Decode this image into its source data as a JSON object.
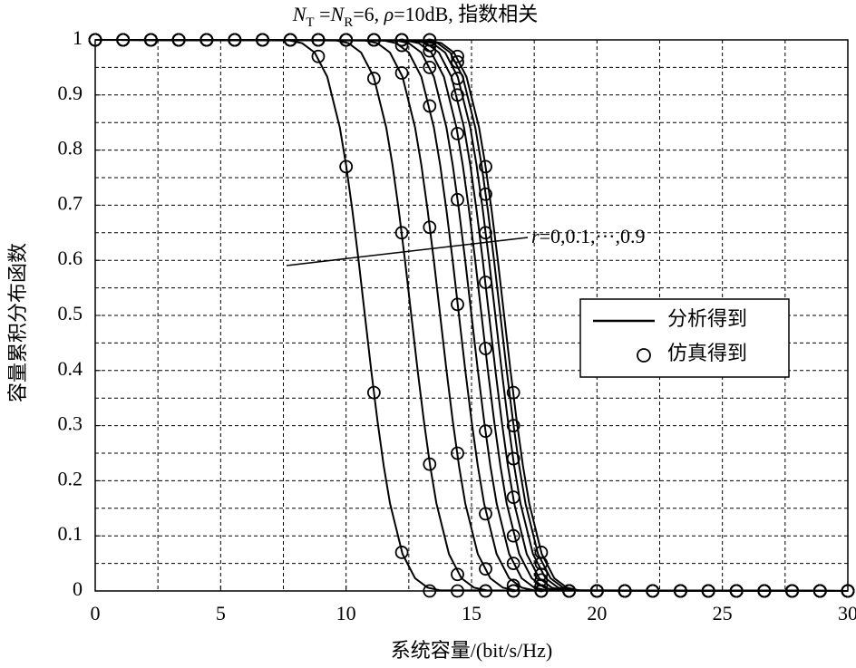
{
  "chart_data": {
    "type": "line",
    "title": [
      "N",
      "T",
      " =",
      "N",
      "R",
      "=6, ",
      "ρ",
      "=10dB, 指数相关"
    ],
    "xlabel": "系统容量/(bit/s/Hz)",
    "ylabel": "容量累积分布函数",
    "xlim": [
      0,
      30
    ],
    "ylim": [
      0,
      1
    ],
    "xticks": [
      0,
      5,
      10,
      15,
      20,
      25,
      30
    ],
    "yticks": [
      0,
      0.1,
      0.2,
      0.3,
      0.4,
      0.5,
      0.6,
      0.7,
      0.8,
      0.9,
      1
    ],
    "grid": true,
    "color": "#000000",
    "legend": {
      "loc": "center right",
      "entries": [
        "分析得到",
        "仿真得到"
      ]
    },
    "annotation": [
      "r",
      "=0,0.1,···,0.9"
    ],
    "curves": [
      {
        "x": [
          0,
          7.75,
          8.25,
          8.75,
          9.25,
          9.75,
          10,
          10.25,
          10.5,
          10.75,
          11,
          11.25,
          11.5,
          11.75,
          12.25,
          12.75,
          13.25,
          13.75,
          30
        ],
        "values": [
          1,
          0.999,
          0.994,
          0.977,
          0.933,
          0.841,
          0.773,
          0.691,
          0.599,
          0.5,
          0.401,
          0.309,
          0.227,
          0.159,
          0.067,
          0.023,
          0.006,
          0.001,
          0
        ]
      },
      {
        "x": [
          0,
          9.6,
          10.1,
          10.6,
          11.1,
          11.6,
          11.85,
          12.1,
          12.35,
          12.6,
          12.85,
          13.1,
          13.35,
          13.6,
          14.1,
          14.6,
          15.1,
          15.6,
          30
        ],
        "values": [
          1,
          0.999,
          0.994,
          0.977,
          0.933,
          0.841,
          0.773,
          0.691,
          0.599,
          0.5,
          0.401,
          0.309,
          0.227,
          0.159,
          0.067,
          0.023,
          0.006,
          0.001,
          0
        ]
      },
      {
        "x": [
          0,
          10.75,
          11.25,
          11.75,
          12.25,
          12.75,
          13,
          13.25,
          13.5,
          13.75,
          14,
          14.25,
          14.5,
          14.75,
          15.25,
          15.75,
          16.25,
          16.75,
          30
        ],
        "values": [
          1,
          0.999,
          0.994,
          0.977,
          0.933,
          0.841,
          0.773,
          0.691,
          0.599,
          0.5,
          0.401,
          0.309,
          0.227,
          0.159,
          0.067,
          0.023,
          0.006,
          0.001,
          0
        ]
      },
      {
        "x": [
          0,
          11.5,
          12,
          12.5,
          13,
          13.5,
          13.75,
          14,
          14.25,
          14.5,
          14.75,
          15,
          15.25,
          15.5,
          16,
          16.5,
          17,
          17.5,
          30
        ],
        "values": [
          1,
          0.999,
          0.994,
          0.977,
          0.933,
          0.841,
          0.773,
          0.691,
          0.599,
          0.5,
          0.401,
          0.309,
          0.227,
          0.159,
          0.067,
          0.023,
          0.006,
          0.001,
          0
        ]
      },
      {
        "x": [
          0,
          12,
          12.5,
          13,
          13.5,
          14,
          14.25,
          14.5,
          14.75,
          15,
          15.25,
          15.5,
          15.75,
          16,
          16.5,
          17,
          17.5,
          18,
          30
        ],
        "values": [
          1,
          0.999,
          0.994,
          0.977,
          0.933,
          0.841,
          0.773,
          0.691,
          0.599,
          0.5,
          0.401,
          0.309,
          0.227,
          0.159,
          0.067,
          0.023,
          0.006,
          0.001,
          0
        ]
      },
      {
        "x": [
          0,
          12.4,
          12.9,
          13.4,
          13.9,
          14.4,
          14.65,
          14.9,
          15.15,
          15.4,
          15.65,
          15.9,
          16.15,
          16.4,
          16.9,
          17.4,
          17.9,
          18.4,
          30
        ],
        "values": [
          1,
          0.999,
          0.994,
          0.977,
          0.933,
          0.841,
          0.773,
          0.691,
          0.599,
          0.5,
          0.401,
          0.309,
          0.227,
          0.159,
          0.067,
          0.023,
          0.006,
          0.001,
          0
        ]
      },
      {
        "x": [
          0,
          12.7,
          13.2,
          13.7,
          14.2,
          14.7,
          14.95,
          15.2,
          15.45,
          15.7,
          15.95,
          16.2,
          16.45,
          16.7,
          17.2,
          17.7,
          18.2,
          18.7,
          30
        ],
        "values": [
          1,
          0.999,
          0.994,
          0.977,
          0.933,
          0.841,
          0.773,
          0.691,
          0.599,
          0.5,
          0.401,
          0.309,
          0.227,
          0.159,
          0.067,
          0.023,
          0.006,
          0.001,
          0
        ]
      },
      {
        "x": [
          0,
          12.95,
          13.45,
          13.95,
          14.45,
          14.95,
          15.2,
          15.45,
          15.7,
          15.95,
          16.2,
          16.45,
          16.7,
          16.95,
          17.45,
          17.95,
          18.45,
          18.95,
          30
        ],
        "values": [
          1,
          0.999,
          0.994,
          0.977,
          0.933,
          0.841,
          0.773,
          0.691,
          0.599,
          0.5,
          0.401,
          0.309,
          0.227,
          0.159,
          0.067,
          0.023,
          0.006,
          0.001,
          0
        ]
      },
      {
        "x": [
          0,
          13.15,
          13.65,
          14.15,
          14.65,
          15.15,
          15.4,
          15.65,
          15.9,
          16.15,
          16.4,
          16.65,
          16.9,
          17.15,
          17.65,
          18.15,
          18.65,
          19.15,
          30
        ],
        "values": [
          1,
          0.999,
          0.994,
          0.977,
          0.933,
          0.841,
          0.773,
          0.691,
          0.599,
          0.5,
          0.401,
          0.309,
          0.227,
          0.159,
          0.067,
          0.023,
          0.006,
          0.001,
          0
        ]
      },
      {
        "x": [
          0,
          13.3,
          13.8,
          14.3,
          14.8,
          15.3,
          15.55,
          15.8,
          16.05,
          16.3,
          16.55,
          16.8,
          17.05,
          17.3,
          17.8,
          18.3,
          18.8,
          19.3,
          30
        ],
        "values": [
          1,
          0.999,
          0.994,
          0.977,
          0.933,
          0.841,
          0.773,
          0.691,
          0.599,
          0.5,
          0.401,
          0.309,
          0.227,
          0.159,
          0.067,
          0.023,
          0.006,
          0.001,
          0
        ]
      }
    ],
    "sim_x": [
      0,
      1.11,
      2.22,
      3.33,
      4.44,
      5.56,
      6.67,
      7.78,
      8.89,
      10,
      11.11,
      12.22,
      13.33,
      14.44,
      15.56,
      16.67,
      17.78,
      18.89,
      20,
      21.11,
      22.22,
      23.33,
      24.44,
      25.56,
      26.67,
      27.78,
      28.89,
      30
    ],
    "simulated": [
      {
        "values": [
          1,
          1,
          1,
          1,
          1,
          1,
          1,
          1,
          0.97,
          0.77,
          0.36,
          0.07,
          0,
          0,
          0,
          0,
          0,
          0,
          0,
          0,
          0,
          0,
          0,
          0,
          0,
          0,
          0,
          0
        ]
      },
      {
        "values": [
          1,
          1,
          1,
          1,
          1,
          1,
          1,
          1,
          1,
          1,
          0.93,
          0.65,
          0.23,
          0.03,
          0,
          0,
          0,
          0,
          0,
          0,
          0,
          0,
          0,
          0,
          0,
          0,
          0,
          0
        ]
      },
      {
        "values": [
          1,
          1,
          1,
          1,
          1,
          1,
          1,
          1,
          1,
          1,
          1,
          0.94,
          0.66,
          0.25,
          0.04,
          0,
          0,
          0,
          0,
          0,
          0,
          0,
          0,
          0,
          0,
          0,
          0,
          0
        ]
      },
      {
        "values": [
          1,
          1,
          1,
          1,
          1,
          1,
          1,
          1,
          1,
          1,
          1,
          0.99,
          0.88,
          0.52,
          0.14,
          0.01,
          0,
          0,
          0,
          0,
          0,
          0,
          0,
          0,
          0,
          0,
          0,
          0
        ]
      },
      {
        "values": [
          1,
          1,
          1,
          1,
          1,
          1,
          1,
          1,
          1,
          1,
          1,
          1,
          0.95,
          0.71,
          0.29,
          0.05,
          0,
          0,
          0,
          0,
          0,
          0,
          0,
          0,
          0,
          0,
          0,
          0
        ]
      },
      {
        "values": [
          1,
          1,
          1,
          1,
          1,
          1,
          1,
          1,
          1,
          1,
          1,
          1,
          0.98,
          0.83,
          0.44,
          0.1,
          0.01,
          0,
          0,
          0,
          0,
          0,
          0,
          0,
          0,
          0,
          0,
          0
        ]
      },
      {
        "values": [
          1,
          1,
          1,
          1,
          1,
          1,
          1,
          1,
          1,
          1,
          1,
          1,
          0.99,
          0.9,
          0.56,
          0.17,
          0.02,
          0,
          0,
          0,
          0,
          0,
          0,
          0,
          0,
          0,
          0,
          0
        ]
      },
      {
        "values": [
          1,
          1,
          1,
          1,
          1,
          1,
          1,
          1,
          1,
          1,
          1,
          1,
          1,
          0.93,
          0.65,
          0.24,
          0.03,
          0,
          0,
          0,
          0,
          0,
          0,
          0,
          0,
          0,
          0,
          0
        ]
      },
      {
        "values": [
          1,
          1,
          1,
          1,
          1,
          1,
          1,
          1,
          1,
          1,
          1,
          1,
          1,
          0.96,
          0.72,
          0.3,
          0.05,
          0,
          0,
          0,
          0,
          0,
          0,
          0,
          0,
          0,
          0,
          0
        ]
      },
      {
        "values": [
          1,
          1,
          1,
          1,
          1,
          1,
          1,
          1,
          1,
          1,
          1,
          1,
          1,
          0.97,
          0.77,
          0.36,
          0.07,
          0,
          0,
          0,
          0,
          0,
          0,
          0,
          0,
          0,
          0,
          0
        ]
      }
    ]
  }
}
